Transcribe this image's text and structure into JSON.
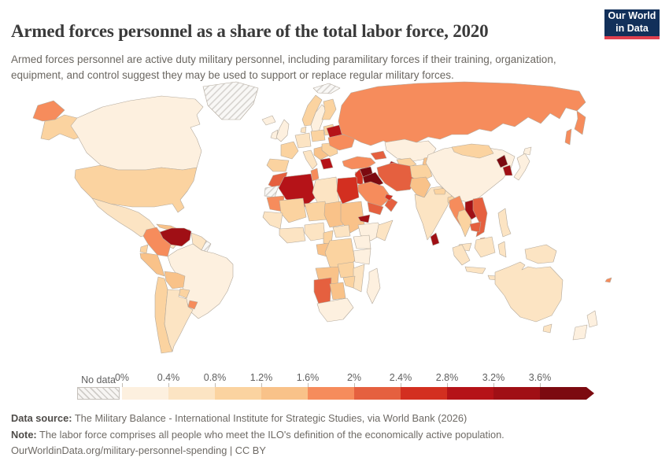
{
  "header": {
    "title": "Armed forces personnel as a share of the total labor force, 2020",
    "subtitle": "Armed forces personnel are active duty military personnel, including paramilitary forces if their training, organization, equipment, and control suggest they may be used to support or replace regular military forces.",
    "logo_line1": "Our World",
    "logo_line2": "in Data",
    "logo_bg": "#12305a",
    "logo_accent": "#e0404e"
  },
  "legend": {
    "no_data_label": "No data",
    "bins": [
      {
        "label": "0%",
        "color": "#fdf0df"
      },
      {
        "label": "0.4%",
        "color": "#fce4c3"
      },
      {
        "label": "0.8%",
        "color": "#fbd3a0"
      },
      {
        "label": "1.2%",
        "color": "#f9c289"
      },
      {
        "label": "1.6%",
        "color": "#f68c5c"
      },
      {
        "label": "2%",
        "color": "#e5603f"
      },
      {
        "label": "2.4%",
        "color": "#d32f20"
      },
      {
        "label": "2.8%",
        "color": "#b51318"
      },
      {
        "label": "3.2%",
        "color": "#a00f15"
      },
      {
        "label": "3.6%",
        "color": "#7c0a10"
      }
    ]
  },
  "footer": {
    "source_label": "Data source:",
    "source_text": " The Military Balance - International Institute for Strategic Studies, via World Bank (2026)",
    "note_label": "Note:",
    "note_text": " The labor force comprises all people who meet the ILO's definition of the economically active population.",
    "url": "OurWorldinData.org/military-personnel-spending | CC BY"
  },
  "chart_data": {
    "type": "choropleth_map",
    "title": "Armed forces personnel as a share of the total labor force",
    "year": "2020",
    "unit": "% of total labor force",
    "legend_tick_labels": [
      "0%",
      "0.4%",
      "0.8%",
      "1.2%",
      "1.6%",
      "2%",
      "2.4%",
      "2.8%",
      "3.2%",
      "3.6%"
    ],
    "no_data_regions": [
      "Greenland",
      "Svalbard",
      "Western Sahara",
      "French Guiana"
    ],
    "country_bins": {
      "canada": 0,
      "united-states": 2,
      "mexico": 1,
      "central-america": 1,
      "cuba": 3,
      "hispaniola": 4,
      "venezuela": 8,
      "colombia": 4,
      "guyanas": 1,
      "brazil": 0,
      "ecuador": 2,
      "peru": 3,
      "bolivia": 3,
      "paraguay": 2,
      "uruguay": 4,
      "chile": 2,
      "argentina": 1,
      "iceland": 0,
      "united-kingdom": 0,
      "ireland": 0,
      "norway": 2,
      "sweden": 0,
      "finland": 2,
      "baltics": 2,
      "denmark": 1,
      "germany-central-europe": 1,
      "poland": 2,
      "france": 2,
      "iberia": 2,
      "italy": 1,
      "balkans": 3,
      "greece": 7,
      "romania-bulgaria": 2,
      "belarus": 7,
      "ukraine": 4,
      "russia": 4,
      "kazakhstan": 0,
      "uzbekistan": 2,
      "turkmenistan": 7,
      "kyrgyzstan-tajikistan": 3,
      "caucasus": 5,
      "turkey": 4,
      "cyprus": 6,
      "syria": 9,
      "iraq": 9,
      "levant": 6,
      "saudi-arabia": 4,
      "yemen": 5,
      "oman": 5,
      "gulf-states": 6,
      "iran": 5,
      "afghanistan": 2,
      "pakistan": 3,
      "india": 1,
      "sri-lanka": 8,
      "nepal": 2,
      "bangladesh": 2,
      "china": 0,
      "mongolia": 2,
      "north-korea": 9,
      "south-korea": 8,
      "japan": 0,
      "myanmar": 4,
      "thailand": 2,
      "laos": 8,
      "vietnam": 5,
      "cambodia": 5,
      "malaysia": 1,
      "brunei": 4,
      "indonesia": 1,
      "philippines": 1,
      "new-guinea": 1,
      "australia": 1,
      "new-zealand": 0,
      "fiji": 4,
      "morocco": 5,
      "western-sahara": "no-data",
      "algeria": 7,
      "tunisia": 4,
      "libya": 1,
      "egypt": 6,
      "mauritania": 4,
      "mali": 2,
      "niger": 2,
      "chad": 3,
      "sudan": 3,
      "eritrea": 8,
      "ethiopia": 0,
      "somalia": 1,
      "west-africa": 1,
      "gulf-of-guinea": 1,
      "nigeria": 1,
      "cameroon": 2,
      "central-african-republic": 1,
      "gabon-congo": 3,
      "dr-congo": 2,
      "uganda-kenya": 0,
      "tanzania": 0,
      "angola": 3,
      "zambia": 2,
      "zimbabwe": 2,
      "mozambique": 1,
      "namibia": 5,
      "botswana": 3,
      "south-africa": 0,
      "madagascar": 0,
      "greenland": "no-data",
      "svalbard": "no-data",
      "french-guiana": "no-data"
    }
  }
}
